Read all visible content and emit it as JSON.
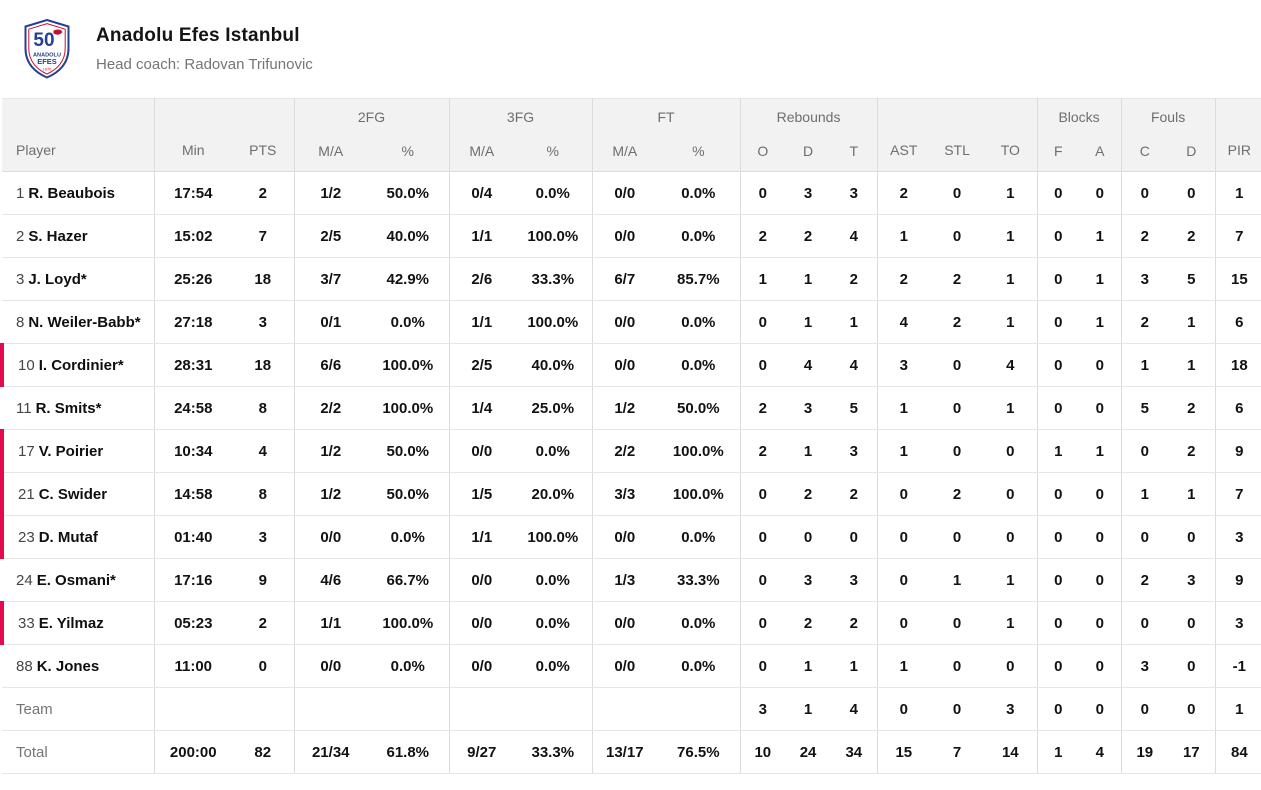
{
  "team": {
    "name": "Anadolu Efes Istanbul",
    "coach_line": "Head coach: Radovan Trifunovic",
    "logo": {
      "number": "50",
      "name_top": "ANADOLU",
      "name_bottom": "EFES",
      "year": "1976"
    }
  },
  "table": {
    "groups": {
      "fg2": "2FG",
      "fg3": "3FG",
      "ft": "FT",
      "rebounds": "Rebounds",
      "blocks": "Blocks",
      "fouls": "Fouls"
    },
    "columns": {
      "player": "Player",
      "min": "Min",
      "pts": "PTS",
      "ma": "M/A",
      "pct": "%",
      "reb_o": "O",
      "reb_d": "D",
      "reb_t": "T",
      "ast": "AST",
      "stl": "STL",
      "to": "TO",
      "blk_f": "F",
      "blk_a": "A",
      "foul_c": "C",
      "foul_d": "D",
      "pir": "PIR"
    },
    "rows": [
      {
        "number": "1",
        "name": "R. Beaubois",
        "on_court": false,
        "stats": [
          "17:54",
          "2",
          "1/2",
          "50.0%",
          "0/4",
          "0.0%",
          "0/0",
          "0.0%",
          "0",
          "3",
          "3",
          "2",
          "0",
          "1",
          "0",
          "0",
          "0",
          "0",
          "1"
        ]
      },
      {
        "number": "2",
        "name": "S. Hazer",
        "on_court": false,
        "stats": [
          "15:02",
          "7",
          "2/5",
          "40.0%",
          "1/1",
          "100.0%",
          "0/0",
          "0.0%",
          "2",
          "2",
          "4",
          "1",
          "0",
          "1",
          "0",
          "1",
          "2",
          "2",
          "7"
        ]
      },
      {
        "number": "3",
        "name": "J. Loyd*",
        "on_court": false,
        "stats": [
          "25:26",
          "18",
          "3/7",
          "42.9%",
          "2/6",
          "33.3%",
          "6/7",
          "85.7%",
          "1",
          "1",
          "2",
          "2",
          "2",
          "1",
          "0",
          "1",
          "3",
          "5",
          "15"
        ]
      },
      {
        "number": "8",
        "name": "N. Weiler-Babb*",
        "on_court": false,
        "stats": [
          "27:18",
          "3",
          "0/1",
          "0.0%",
          "1/1",
          "100.0%",
          "0/0",
          "0.0%",
          "0",
          "1",
          "1",
          "4",
          "2",
          "1",
          "0",
          "1",
          "2",
          "1",
          "6"
        ]
      },
      {
        "number": "10",
        "name": "I. Cordinier*",
        "on_court": true,
        "stats": [
          "28:31",
          "18",
          "6/6",
          "100.0%",
          "2/5",
          "40.0%",
          "0/0",
          "0.0%",
          "0",
          "4",
          "4",
          "3",
          "0",
          "4",
          "0",
          "0",
          "1",
          "1",
          "18"
        ]
      },
      {
        "number": "11",
        "name": "R. Smits*",
        "on_court": false,
        "stats": [
          "24:58",
          "8",
          "2/2",
          "100.0%",
          "1/4",
          "25.0%",
          "1/2",
          "50.0%",
          "2",
          "3",
          "5",
          "1",
          "0",
          "1",
          "0",
          "0",
          "5",
          "2",
          "6"
        ]
      },
      {
        "number": "17",
        "name": "V. Poirier",
        "on_court": true,
        "stats": [
          "10:34",
          "4",
          "1/2",
          "50.0%",
          "0/0",
          "0.0%",
          "2/2",
          "100.0%",
          "2",
          "1",
          "3",
          "1",
          "0",
          "0",
          "1",
          "1",
          "0",
          "2",
          "9"
        ]
      },
      {
        "number": "21",
        "name": "C. Swider",
        "on_court": true,
        "stats": [
          "14:58",
          "8",
          "1/2",
          "50.0%",
          "1/5",
          "20.0%",
          "3/3",
          "100.0%",
          "0",
          "2",
          "2",
          "0",
          "2",
          "0",
          "0",
          "0",
          "1",
          "1",
          "7"
        ]
      },
      {
        "number": "23",
        "name": "D. Mutaf",
        "on_court": true,
        "stats": [
          "01:40",
          "3",
          "0/0",
          "0.0%",
          "1/1",
          "100.0%",
          "0/0",
          "0.0%",
          "0",
          "0",
          "0",
          "0",
          "0",
          "0",
          "0",
          "0",
          "0",
          "0",
          "3"
        ]
      },
      {
        "number": "24",
        "name": "E. Osmani*",
        "on_court": false,
        "stats": [
          "17:16",
          "9",
          "4/6",
          "66.7%",
          "0/0",
          "0.0%",
          "1/3",
          "33.3%",
          "0",
          "3",
          "3",
          "0",
          "1",
          "1",
          "0",
          "0",
          "2",
          "3",
          "9"
        ]
      },
      {
        "number": "33",
        "name": "E. Yilmaz",
        "on_court": true,
        "stats": [
          "05:23",
          "2",
          "1/1",
          "100.0%",
          "0/0",
          "0.0%",
          "0/0",
          "0.0%",
          "0",
          "2",
          "2",
          "0",
          "0",
          "1",
          "0",
          "0",
          "0",
          "0",
          "3"
        ]
      },
      {
        "number": "88",
        "name": "K. Jones",
        "on_court": false,
        "stats": [
          "11:00",
          "0",
          "0/0",
          "0.0%",
          "0/0",
          "0.0%",
          "0/0",
          "0.0%",
          "0",
          "1",
          "1",
          "1",
          "0",
          "0",
          "0",
          "0",
          "3",
          "0",
          "-1"
        ]
      }
    ],
    "team_row": {
      "label": "Team",
      "stats": [
        "",
        "",
        "",
        "",
        "",
        "",
        "",
        "",
        "3",
        "1",
        "4",
        "0",
        "0",
        "3",
        "0",
        "0",
        "0",
        "0",
        "1"
      ]
    },
    "total_row": {
      "label": "Total",
      "stats": [
        "200:00",
        "82",
        "21/34",
        "61.8%",
        "9/27",
        "33.3%",
        "13/17",
        "76.5%",
        "10",
        "24",
        "34",
        "15",
        "7",
        "14",
        "1",
        "4",
        "19",
        "17",
        "84"
      ]
    }
  },
  "colors": {
    "on_court_marker": "#e40a4f",
    "header_bg": "#f2f2f2",
    "logo_blue": "#25408f",
    "logo_red": "#c8102e"
  }
}
